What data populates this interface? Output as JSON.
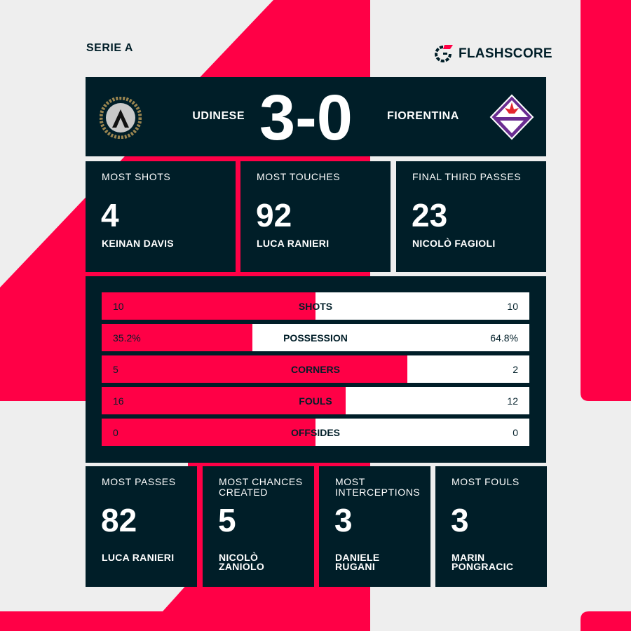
{
  "league": "SERIE A",
  "brand": "FLASHSCORE",
  "colors": {
    "accent": "#ff0046",
    "panel": "#001e28",
    "background": "#eeeeee",
    "fiorentina": "#6a2c91"
  },
  "match": {
    "home": "UDINESE",
    "away": "FIORENTINA",
    "score": "3-0",
    "home_crest": "udinese-crest-icon",
    "away_crest": "fiorentina-crest-icon"
  },
  "top_cards": [
    {
      "label": "MOST SHOTS",
      "value": "4",
      "player": "KEINAN DAVIS"
    },
    {
      "label": "MOST TOUCHES",
      "value": "92",
      "player": "LUCA RANIERI"
    },
    {
      "label": "FINAL THIRD PASSES",
      "value": "23",
      "player": "NICOLÒ FAGIOLI"
    }
  ],
  "stats": [
    {
      "name": "SHOTS",
      "home": "10",
      "away": "10",
      "home_share": 50
    },
    {
      "name": "POSSESSION",
      "home": "35.2%",
      "away": "64.8%",
      "home_share": 35.2
    },
    {
      "name": "CORNERS",
      "home": "5",
      "away": "2",
      "home_share": 71.4
    },
    {
      "name": "FOULS",
      "home": "16",
      "away": "12",
      "home_share": 57.1
    },
    {
      "name": "OFFSIDES",
      "home": "0",
      "away": "0",
      "home_share": 50
    }
  ],
  "bottom_cards": [
    {
      "label": "MOST PASSES",
      "value": "82",
      "player": "LUCA RANIERI"
    },
    {
      "label": "MOST CHANCES CREATED",
      "value": "5",
      "player": "NICOLÒ ZANIOLO"
    },
    {
      "label": "MOST INTERCEPTIONS",
      "value": "3",
      "player": "DANIELE RUGANI"
    },
    {
      "label": "MOST FOULS",
      "value": "3",
      "player": "MARIN PONGRACIC"
    }
  ]
}
